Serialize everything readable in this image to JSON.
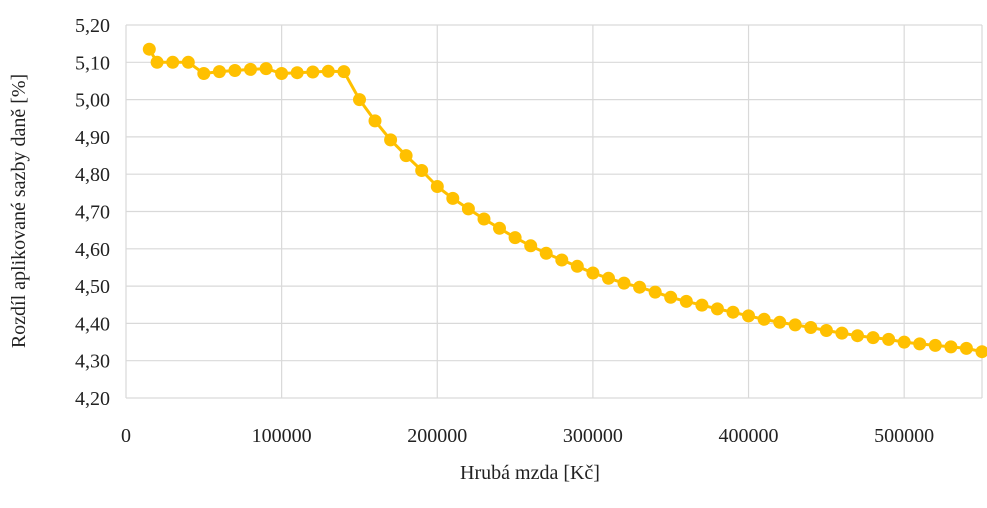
{
  "chart_data": {
    "type": "line",
    "title": "",
    "xlabel": "Hrubá mzda [Kč]",
    "ylabel": "Rozdíl aplikované sazby daně [%]",
    "xlim": [
      0,
      550000
    ],
    "ylim": [
      4.2,
      5.2
    ],
    "x_ticks": [
      "0",
      "100000",
      "200000",
      "300000",
      "400000",
      "500000"
    ],
    "y_ticks": [
      "4,20",
      "4,30",
      "4,40",
      "4,50",
      "4,60",
      "4,70",
      "4,80",
      "4,90",
      "5,00",
      "5,10",
      "5,20"
    ],
    "grid": true,
    "legend": "none",
    "color": "#FFC000",
    "series": [
      {
        "x": [
          15000,
          20000,
          30000,
          40000,
          50000,
          60000,
          70000,
          80000,
          90000,
          100000,
          110000,
          120000,
          130000,
          140000,
          150000,
          160000,
          170000,
          180000,
          190000,
          200000,
          210000,
          220000,
          230000,
          240000,
          250000,
          260000,
          270000,
          280000,
          290000,
          300000,
          310000,
          320000,
          330000,
          340000,
          350000,
          360000,
          370000,
          380000,
          390000,
          400000,
          410000,
          420000,
          430000,
          440000,
          450000,
          460000,
          470000,
          480000,
          490000,
          500000,
          510000,
          520000,
          530000,
          540000,
          550000
        ],
        "y": [
          5.135,
          5.1,
          5.1,
          5.1,
          5.07,
          5.075,
          5.078,
          5.081,
          5.083,
          5.07,
          5.072,
          5.074,
          5.076,
          5.075,
          5.0,
          4.943,
          4.892,
          4.85,
          4.81,
          4.767,
          4.735,
          4.707,
          4.68,
          4.655,
          4.63,
          4.608,
          4.588,
          4.57,
          4.553,
          4.535,
          4.521,
          4.508,
          4.497,
          4.484,
          4.47,
          4.459,
          4.449,
          4.439,
          4.43,
          4.42,
          4.411,
          4.403,
          4.396,
          4.389,
          4.381,
          4.374,
          4.367,
          4.362,
          4.357,
          4.35,
          4.345,
          4.341,
          4.337,
          4.333,
          4.324
        ]
      }
    ]
  }
}
